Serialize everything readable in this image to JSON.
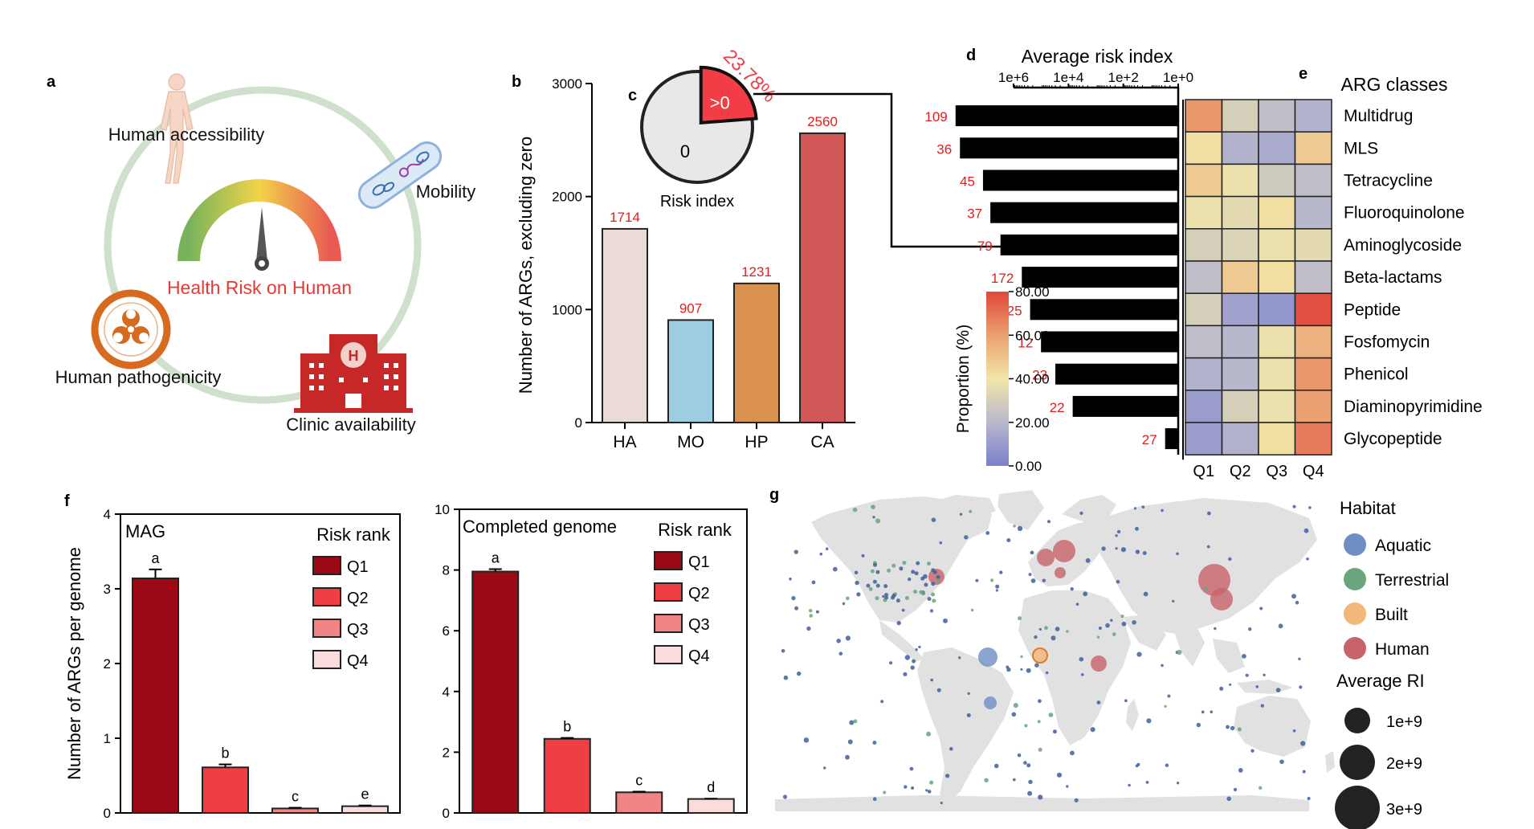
{
  "panels": {
    "a": {
      "letter": "a",
      "labels": {
        "human_accessibility": "Human accessibility",
        "mobility": "Mobility",
        "health_risk": "Health Risk on Human",
        "human_pathogenicity": "Human pathogenicity",
        "clinic_availability": "Clinic availability"
      },
      "colors": {
        "circle": "#cfe0cc",
        "health_risk_text": "#e53935",
        "biohazard": "#d86a1f",
        "hospital": "#c62828"
      },
      "icons": [
        "human-body-icon",
        "mobility-bacteria-icon",
        "risk-gauge-icon",
        "biohazard-icon",
        "hospital-icon"
      ]
    },
    "b": {
      "letter": "b",
      "chart_data": {
        "type": "bar",
        "categories": [
          "HA",
          "MO",
          "HP",
          "CA"
        ],
        "values": [
          1714,
          907,
          1231,
          2560
        ],
        "value_labels": [
          "1714",
          "907",
          "1231",
          "2560"
        ],
        "colors": [
          "#eadbd6",
          "#9ecde3",
          "#db914e",
          "#d25858"
        ],
        "ylabel": "Number of ARGs, excluding zero",
        "ylim": [
          0,
          3000
        ],
        "yticks": [
          0,
          1000,
          2000,
          3000
        ],
        "ytick_labels": [
          "0",
          "1000",
          "2000",
          "3000"
        ]
      }
    },
    "c": {
      "letter": "c",
      "chart_data": {
        "type": "pie",
        "slices": [
          {
            "label": "0",
            "value": 76.22,
            "color": "#e8e8e8"
          },
          {
            "label": ">0",
            "value": 23.78,
            "color": "#f23c46"
          }
        ],
        "percent_label": "23.78%",
        "caption": "Risk index"
      }
    },
    "d": {
      "letter": "d",
      "chart_data": {
        "type": "bar",
        "orientation": "horizontal-reversed",
        "title": "Average risk index",
        "scale": "log",
        "xticks": [
          1000000,
          10000,
          100,
          1
        ],
        "xtick_labels": [
          "1e+6",
          "1e+4",
          "1e+2",
          "1e+0"
        ],
        "categories": [
          "Multidrug",
          "MLS",
          "Tetracycline",
          "Fluoroquinolone",
          "Aminoglycoside",
          "Beta-lactams",
          "Peptide",
          "Fosfomycin",
          "Phenicol",
          "Diaminopyrimidine",
          "Glycopeptide"
        ],
        "values": [
          130000000,
          90000000,
          13000000,
          7000000,
          3000000,
          500000,
          250000,
          100000,
          30000,
          7000,
          3
        ],
        "count_labels": [
          "109",
          "36",
          "45",
          "37",
          "79",
          "172",
          "25",
          "12",
          "23",
          "22",
          "27"
        ],
        "count_label_color": "#e01e1e"
      }
    },
    "e": {
      "letter": "e",
      "chart_data": {
        "type": "heatmap",
        "title": "ARG classes",
        "columns": [
          "Q1",
          "Q2",
          "Q3",
          "Q4"
        ],
        "rows": [
          "Multidrug",
          "MLS",
          "Tetracycline",
          "Fluoroquinolone",
          "Aminoglycoside",
          "Beta-lactams",
          "Peptide",
          "Fosfomycin",
          "Phenicol",
          "Diaminopyrimidine",
          "Glycopeptide"
        ],
        "values": [
          [
            62,
            30,
            22,
            18
          ],
          [
            42,
            18,
            15,
            48
          ],
          [
            48,
            38,
            28,
            22
          ],
          [
            38,
            35,
            42,
            20
          ],
          [
            30,
            32,
            38,
            35
          ],
          [
            22,
            48,
            42,
            22
          ],
          [
            30,
            12,
            8,
            78
          ],
          [
            22,
            20,
            38,
            55
          ],
          [
            18,
            20,
            38,
            62
          ],
          [
            10,
            30,
            38,
            60
          ],
          [
            10,
            18,
            42,
            68
          ]
        ],
        "colorbar": {
          "label": "Proportion (%)",
          "min": 0,
          "max": 80,
          "ticks": [
            "0.00",
            "20.00",
            "40.00",
            "60.00",
            "80.00"
          ],
          "colors": [
            "#7b7fcc",
            "#b8b8cc",
            "#f2e5a8",
            "#eaa070",
            "#e0473b"
          ]
        }
      }
    },
    "f": {
      "letter": "f",
      "ylabel": "Number of ARGs per genome",
      "legend_title": "Risk rank",
      "legend_items": [
        "Q1",
        "Q2",
        "Q3",
        "Q4"
      ],
      "colors": [
        "#9b0a14",
        "#ef3e44",
        "#f08585",
        "#fbdcdc"
      ],
      "chart_data": [
        {
          "type": "bar",
          "title": "MAG",
          "categories": [
            "Q1",
            "Q2",
            "Q3",
            "Q4"
          ],
          "values": [
            3.14,
            0.61,
            0.06,
            0.09
          ],
          "errors": [
            0.12,
            0.04,
            0.01,
            0.01
          ],
          "letters": [
            "a",
            "b",
            "c",
            "e"
          ],
          "ylim": [
            0,
            4
          ],
          "yticks": [
            0,
            1,
            2,
            3,
            4
          ],
          "ytick_labels": [
            "0",
            "1",
            "2",
            "3",
            "4"
          ]
        },
        {
          "type": "bar",
          "title": "Completed genome",
          "categories": [
            "Q1",
            "Q2",
            "Q3",
            "Q4"
          ],
          "values": [
            7.95,
            2.44,
            0.68,
            0.46
          ],
          "errors": [
            0.08,
            0.03,
            0.02,
            0.01
          ],
          "letters": [
            "a",
            "b",
            "c",
            "d"
          ],
          "ylim": [
            0,
            10
          ],
          "yticks": [
            0,
            2,
            4,
            6,
            8,
            10
          ],
          "ytick_labels": [
            "0",
            "2",
            "4",
            "6",
            "8",
            "10"
          ]
        }
      ]
    },
    "g": {
      "letter": "g",
      "legend": {
        "habitat_title": "Habitat",
        "habitats": [
          {
            "name": "Aquatic",
            "color": "#6f8fc4"
          },
          {
            "name": "Terrestrial",
            "color": "#6aa57e"
          },
          {
            "name": "Built",
            "color": "#f1b87a"
          },
          {
            "name": "Human",
            "color": "#c8636a"
          }
        ],
        "size_title": "Average RI",
        "sizes": [
          {
            "label": "1e+9",
            "value": 1000000000
          },
          {
            "label": "2e+9",
            "value": 2000000000
          },
          {
            "label": "3e+9",
            "value": 3000000000
          }
        ]
      },
      "land_color": "#e1e1e1"
    }
  }
}
